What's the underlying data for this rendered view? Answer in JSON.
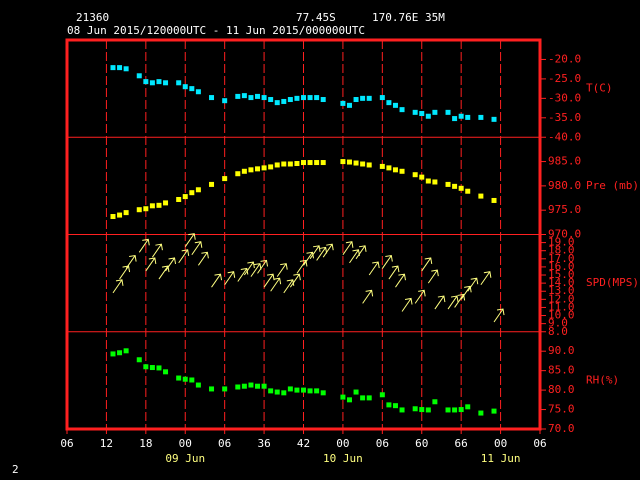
{
  "header": {
    "station": "21360",
    "lat": "77.45S",
    "lon": "170.76E",
    "elev": "35M",
    "period": "08 Jun 2015/120000UTC - 11 Jun 2015/000000UTC"
  },
  "page_number": "2",
  "x_axis": {
    "xlim": [
      6,
      78
    ],
    "xticks": [
      {
        "value": 6,
        "label": "06"
      },
      12,
      18,
      {
        "value": 24,
        "label": "00"
      },
      {
        "value": 30,
        "label": "06"
      },
      36,
      42,
      {
        "value": 48,
        "label": "00"
      },
      {
        "value": 54,
        "label": "06"
      },
      60,
      66,
      {
        "value": 72,
        "label": "00"
      },
      {
        "value": 78,
        "label": "06"
      }
    ],
    "dates": [
      {
        "value": 24,
        "label": "09 Jun"
      },
      {
        "value": 48,
        "label": "10 Jun"
      },
      {
        "value": 72,
        "label": "11 Jun"
      }
    ]
  },
  "chart_data": [
    {
      "type": "scatter",
      "ylabel": "T(C)",
      "color": "#00e8ff",
      "ylim": [
        -40,
        -15
      ],
      "yticks": [
        {
          "value": -20,
          "label": "-20.0"
        },
        {
          "value": -25,
          "label": "-25.0"
        },
        {
          "value": -30,
          "label": "-30.0"
        },
        {
          "value": -35,
          "label": "-35.0"
        },
        {
          "value": -40,
          "label": "-40.0"
        }
      ],
      "x": [
        13,
        14,
        15,
        17,
        18,
        19,
        20,
        21,
        23,
        24,
        25,
        26,
        28,
        30,
        32,
        33,
        34,
        35,
        36,
        37,
        38,
        39,
        40,
        41,
        42,
        43,
        44,
        45,
        48,
        49,
        50,
        51,
        52,
        54,
        55,
        56,
        57,
        59,
        60,
        61,
        62,
        64,
        65,
        66,
        67,
        69,
        71
      ],
      "values": [
        -22.1,
        -22.1,
        -22.4,
        -24.2,
        -25.7,
        -26.0,
        -25.7,
        -26.0,
        -26.0,
        -27.0,
        -27.5,
        -28.3,
        -29.8,
        -30.6,
        -29.5,
        -29.3,
        -29.8,
        -29.5,
        -29.8,
        -30.3,
        -31.1,
        -30.8,
        -30.3,
        -30.0,
        -29.8,
        -29.8,
        -29.8,
        -30.3,
        -31.3,
        -31.8,
        -30.3,
        -30.0,
        -30.0,
        -29.8,
        -31.1,
        -31.8,
        -32.9,
        -33.6,
        -33.9,
        -34.6,
        -33.6,
        -33.6,
        -35.2,
        -34.6,
        -34.9,
        -34.9,
        -35.4
      ]
    },
    {
      "type": "scatter",
      "ylabel": "Pre (mb)",
      "color": "#ffff00",
      "ylim": [
        970,
        990
      ],
      "yticks": [
        {
          "value": 970,
          "label": "970.0"
        },
        {
          "value": 975,
          "label": "975.0"
        },
        {
          "value": 980,
          "label": "980.0"
        },
        {
          "value": 985,
          "label": "985.0"
        }
      ],
      "x": [
        13,
        14,
        15,
        17,
        18,
        19,
        20,
        21,
        23,
        24,
        25,
        26,
        28,
        30,
        32,
        33,
        34,
        35,
        36,
        37,
        38,
        39,
        40,
        41,
        42,
        43,
        44,
        45,
        48,
        49,
        50,
        51,
        52,
        54,
        55,
        56,
        57,
        59,
        60,
        61,
        62,
        64,
        65,
        66,
        67,
        69,
        71
      ],
      "values": [
        973.7,
        974.0,
        974.5,
        975.1,
        975.3,
        975.9,
        976.0,
        976.5,
        977.2,
        977.8,
        978.6,
        979.2,
        980.3,
        981.5,
        982.5,
        983.0,
        983.3,
        983.5,
        983.7,
        983.9,
        984.3,
        984.5,
        984.5,
        984.6,
        984.8,
        984.8,
        984.8,
        984.8,
        985.0,
        984.9,
        984.7,
        984.5,
        984.3,
        984.0,
        983.7,
        983.3,
        983.0,
        982.3,
        981.8,
        981.0,
        980.8,
        980.3,
        979.9,
        979.5,
        978.9,
        977.9,
        977.0
      ]
    },
    {
      "type": "wind",
      "ylabel": "SPD(MPS)",
      "color": "#ffff80",
      "ylim": [
        8,
        20
      ],
      "yticks": [
        {
          "value": 8,
          "label": "8.0"
        },
        {
          "value": 9,
          "label": "9.0"
        },
        {
          "value": 10,
          "label": "10.0"
        },
        {
          "value": 11,
          "label": "11.0"
        },
        {
          "value": 12,
          "label": "12.0"
        },
        {
          "value": 13,
          "label": "13.0"
        },
        {
          "value": 14,
          "label": "14.0"
        },
        {
          "value": 15,
          "label": "15.0"
        },
        {
          "value": 16,
          "label": "16.0"
        },
        {
          "value": 17,
          "label": "17.0"
        },
        {
          "value": 18,
          "label": "18.0"
        },
        {
          "value": 19,
          "label": "19.0"
        }
      ],
      "x": [
        13,
        14,
        15,
        17,
        18,
        19,
        20,
        21,
        23,
        24,
        25,
        26,
        28,
        30,
        32,
        33,
        34,
        35,
        36,
        37,
        38,
        39,
        40,
        41,
        42,
        43,
        44,
        45,
        48,
        49,
        50,
        51,
        52,
        54,
        55,
        56,
        57,
        59,
        60,
        61,
        62,
        64,
        65,
        66,
        67,
        69,
        71
      ],
      "values": [
        12.8,
        14.5,
        15.8,
        17.8,
        15.5,
        17.2,
        14.5,
        15.5,
        16.5,
        18.5,
        17.5,
        16.2,
        13.5,
        13.8,
        14.2,
        15.0,
        14.8,
        15.2,
        13.5,
        13.0,
        14.8,
        12.8,
        13.5,
        15.2,
        16.2,
        17.0,
        16.8,
        17.2,
        17.5,
        16.5,
        17.0,
        11.5,
        15.0,
        15.8,
        14.5,
        13.5,
        10.5,
        11.5,
        15.5,
        14.0,
        10.8,
        10.8,
        11.0,
        12.0,
        13.0,
        13.8,
        9.2
      ]
    },
    {
      "type": "scatter",
      "ylabel": "RH(%)",
      "color": "#00ff00",
      "ylim": [
        70,
        95
      ],
      "yticks": [
        {
          "value": 70,
          "label": "70.0"
        },
        {
          "value": 75,
          "label": "75.0"
        },
        {
          "value": 80,
          "label": "80.0"
        },
        {
          "value": 85,
          "label": "85.0"
        },
        {
          "value": 90,
          "label": "90.0"
        }
      ],
      "x": [
        13,
        14,
        15,
        17,
        18,
        19,
        20,
        21,
        23,
        24,
        25,
        26,
        28,
        30,
        32,
        33,
        34,
        35,
        36,
        37,
        38,
        39,
        40,
        41,
        42,
        43,
        44,
        45,
        48,
        49,
        50,
        51,
        52,
        54,
        55,
        56,
        57,
        59,
        60,
        61,
        62,
        64,
        65,
        66,
        67,
        69,
        71
      ],
      "values": [
        89.3,
        89.6,
        90.1,
        87.8,
        86.0,
        85.8,
        85.7,
        84.7,
        83.1,
        82.8,
        82.6,
        81.3,
        80.3,
        80.3,
        80.8,
        81.0,
        81.3,
        81.0,
        81.0,
        79.8,
        79.5,
        79.3,
        80.3,
        80.0,
        80.0,
        79.8,
        79.8,
        79.3,
        78.2,
        77.5,
        79.5,
        78.0,
        78.0,
        78.8,
        76.2,
        76.0,
        74.9,
        75.2,
        75.0,
        74.9,
        77.0,
        74.9,
        74.9,
        75.0,
        75.7,
        74.1,
        74.6
      ]
    }
  ]
}
